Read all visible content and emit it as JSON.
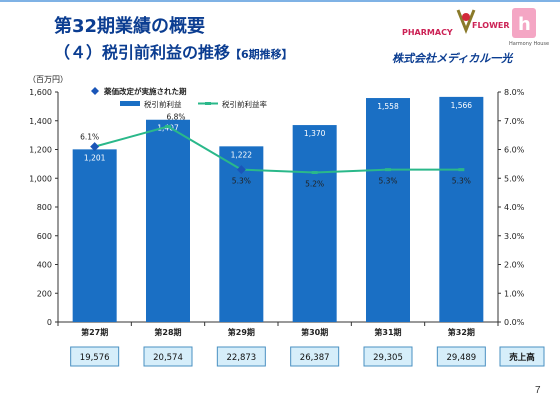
{
  "slide": {
    "title_line1": "第32期業績の概要",
    "title_line2_main": "（４）税引前利益の推移",
    "title_line2_sub": "【6期推移】",
    "page_number": "7"
  },
  "logo": {
    "pharmacy": "PHARMACY",
    "flower": "FLOWER",
    "harmony": "Harmony House",
    "company": "株式会社メディカル一光"
  },
  "colors": {
    "bar": "#1a6fc4",
    "line": "#2ab88a",
    "marker_special": "#1a55b8",
    "title": "#0b3d91",
    "sales_box_fill": "#d6eefa",
    "sales_box_border": "#4a90c2"
  },
  "chart_data": {
    "type": "bar",
    "categories": [
      "第27期",
      "第28期",
      "第29期",
      "第30期",
      "第31期",
      "第32期"
    ],
    "unit_label": "（百万円）",
    "ylim": [
      0,
      1600
    ],
    "yticks": [
      "0",
      "200",
      "400",
      "600",
      "800",
      "1,000",
      "1,200",
      "1,400",
      "1,600"
    ],
    "y2lim": [
      0,
      8
    ],
    "y2ticks": [
      "0.0%",
      "1.0%",
      "2.0%",
      "3.0%",
      "4.0%",
      "5.0%",
      "6.0%",
      "7.0%",
      "8.0%"
    ],
    "legend_position": "top-left",
    "grid": false,
    "series": [
      {
        "name": "税引前利益",
        "kind": "bar",
        "axis": "left",
        "values": [
          1201,
          1407,
          1222,
          1370,
          1558,
          1566
        ],
        "labels": [
          "1,201",
          "1,407",
          "1,222",
          "1,370",
          "1,558",
          "1,566"
        ]
      },
      {
        "name": "税引前利益率",
        "kind": "line",
        "axis": "right",
        "values": [
          6.1,
          6.8,
          5.3,
          5.2,
          5.3,
          5.3
        ],
        "labels": [
          "6.1%",
          "6.8%",
          "5.3%",
          "5.2%",
          "5.3%",
          "5.3%"
        ]
      }
    ],
    "special_legend": "薬価改定が実施された期",
    "special_indices": [
      0,
      2
    ],
    "sales": {
      "label": "売上高",
      "values": [
        "19,576",
        "20,574",
        "22,873",
        "26,387",
        "29,305",
        "29,489"
      ]
    }
  }
}
